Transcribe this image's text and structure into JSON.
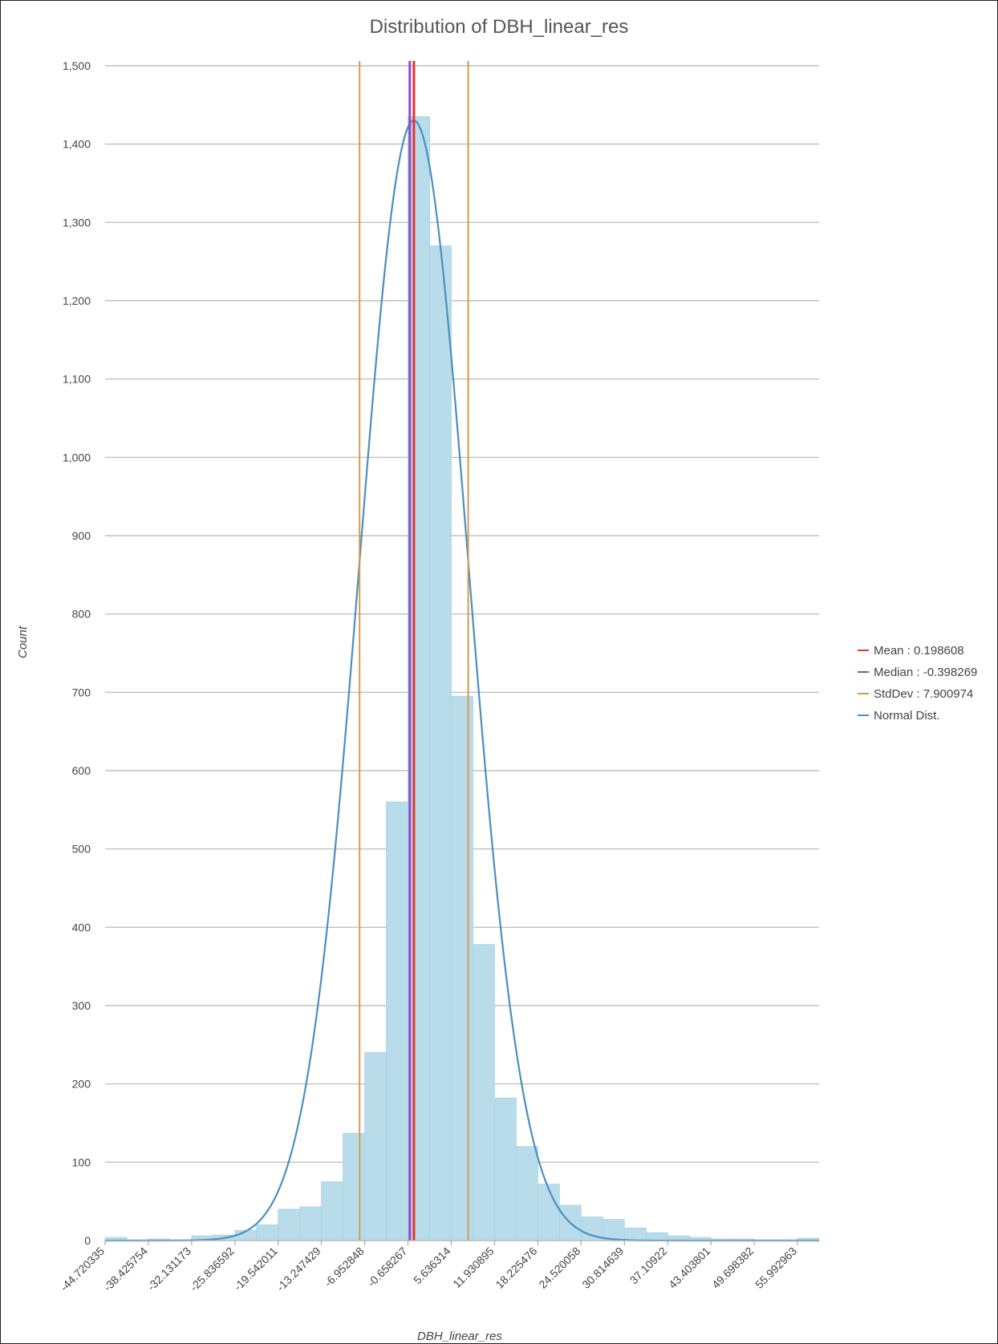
{
  "chart_data": {
    "type": "bar",
    "title": "Distribution of DBH_linear_res",
    "xlabel": "DBH_linear_res",
    "ylabel": "Count",
    "ylim": [
      0,
      1500
    ],
    "yticks": [
      0,
      100,
      200,
      300,
      400,
      500,
      600,
      700,
      800,
      900,
      1000,
      1100,
      1200,
      1300,
      1400,
      1500
    ],
    "ytick_labels": [
      "0",
      "100",
      "200",
      "300",
      "400",
      "500",
      "600",
      "700",
      "800",
      "900",
      "1,000",
      "1,100",
      "1,200",
      "1,300",
      "1,400",
      "1,500"
    ],
    "xlim": [
      -44.720335,
      59.140254
    ],
    "x_tick_labels": [
      "-44.720335",
      "-38.425754",
      "-32.131173",
      "-25.836592",
      "-19.542011",
      "-13.247429",
      "-6.952848",
      "-0.658267",
      "5.636314",
      "11.930895",
      "18.225476",
      "24.520058",
      "30.814639",
      "37.10922",
      "43.403801",
      "49.698382",
      "55.992963"
    ],
    "x_tick_values": [
      -44.720335,
      -38.425754,
      -32.131173,
      -25.836592,
      -19.542011,
      -13.247429,
      -6.952848,
      -0.658267,
      5.636314,
      11.930895,
      18.225476,
      24.520058,
      30.814639,
      37.10922,
      43.403801,
      49.698382,
      55.992963
    ],
    "bin_width": 3.1472905,
    "values": [
      4,
      1,
      2,
      1,
      6,
      7,
      13,
      20,
      40,
      43,
      75,
      137,
      240,
      560,
      1435,
      1270,
      695,
      378,
      182,
      120,
      72,
      45,
      30,
      27,
      16,
      10,
      6,
      4,
      2,
      2,
      1,
      1,
      3
    ],
    "bar_color": "#b9dcea",
    "grid": "horizontal",
    "legend_placement": "right",
    "legend": [
      {
        "label": "Mean : 0.198608",
        "color": "#e8322a"
      },
      {
        "label": "Median : -0.398269",
        "color": "#8a4bc9"
      },
      {
        "label": "StdDev : 7.900974",
        "color": "#d39a55"
      },
      {
        "label": "Normal Dist.",
        "color": "#4a8fc2"
      }
    ],
    "reference_lines": {
      "mean": 0.198608,
      "median": -0.398269,
      "stddev": 7.900974
    },
    "normal_curve": {
      "mean": 0.198608,
      "peak": 1430,
      "color": "#4a8fc2"
    }
  }
}
